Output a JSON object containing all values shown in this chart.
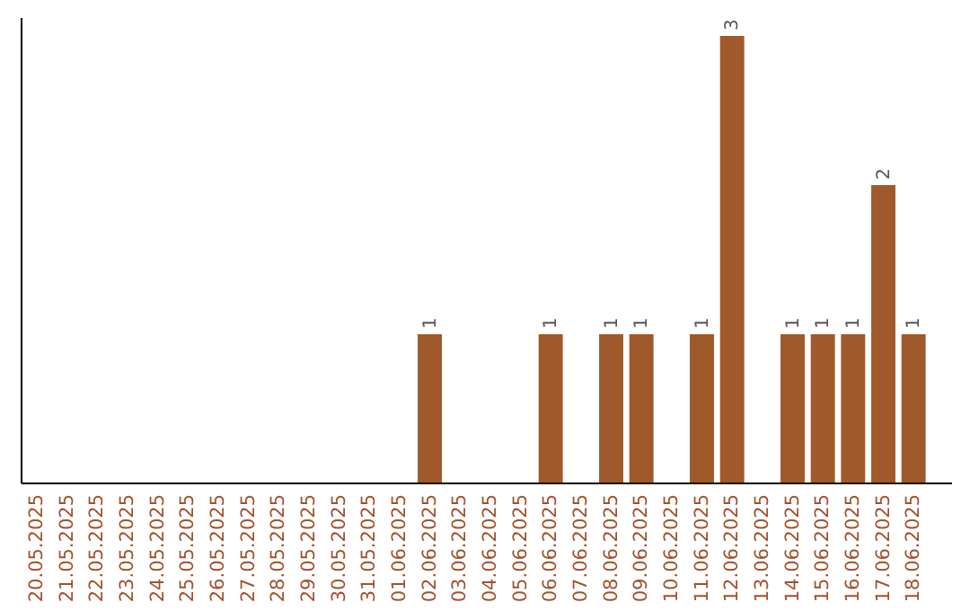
{
  "chart_data": {
    "type": "bar",
    "categories": [
      "20.05.2025",
      "21.05.2025",
      "22.05.2025",
      "23.05.2025",
      "24.05.2025",
      "25.05.2025",
      "26.05.2025",
      "27.05.2025",
      "28.05.2025",
      "29.05.2025",
      "30.05.2025",
      "31.05.2025",
      "01.06.2025",
      "02.06.2025",
      "03.06.2025",
      "04.06.2025",
      "05.06.2025",
      "06.06.2025",
      "07.06.2025",
      "08.06.2025",
      "09.06.2025",
      "10.06.2025",
      "11.06.2025",
      "12.06.2025",
      "13.06.2025",
      "14.06.2025",
      "15.06.2025",
      "16.06.2025",
      "17.06.2025",
      "18.06.2025"
    ],
    "values": [
      null,
      null,
      null,
      null,
      null,
      null,
      null,
      null,
      null,
      null,
      null,
      null,
      null,
      1,
      null,
      null,
      null,
      1,
      null,
      1,
      1,
      null,
      1,
      3,
      null,
      1,
      1,
      1,
      2,
      1
    ],
    "value_labels": [
      null,
      null,
      null,
      null,
      null,
      null,
      null,
      null,
      null,
      null,
      null,
      null,
      null,
      "1",
      null,
      null,
      null,
      "1",
      null,
      "1",
      "1",
      null,
      "1",
      "3",
      null,
      "1",
      "1",
      "1",
      "2",
      "1"
    ],
    "color": "#a0592a",
    "grid": false,
    "tick_labels": "x"
  }
}
